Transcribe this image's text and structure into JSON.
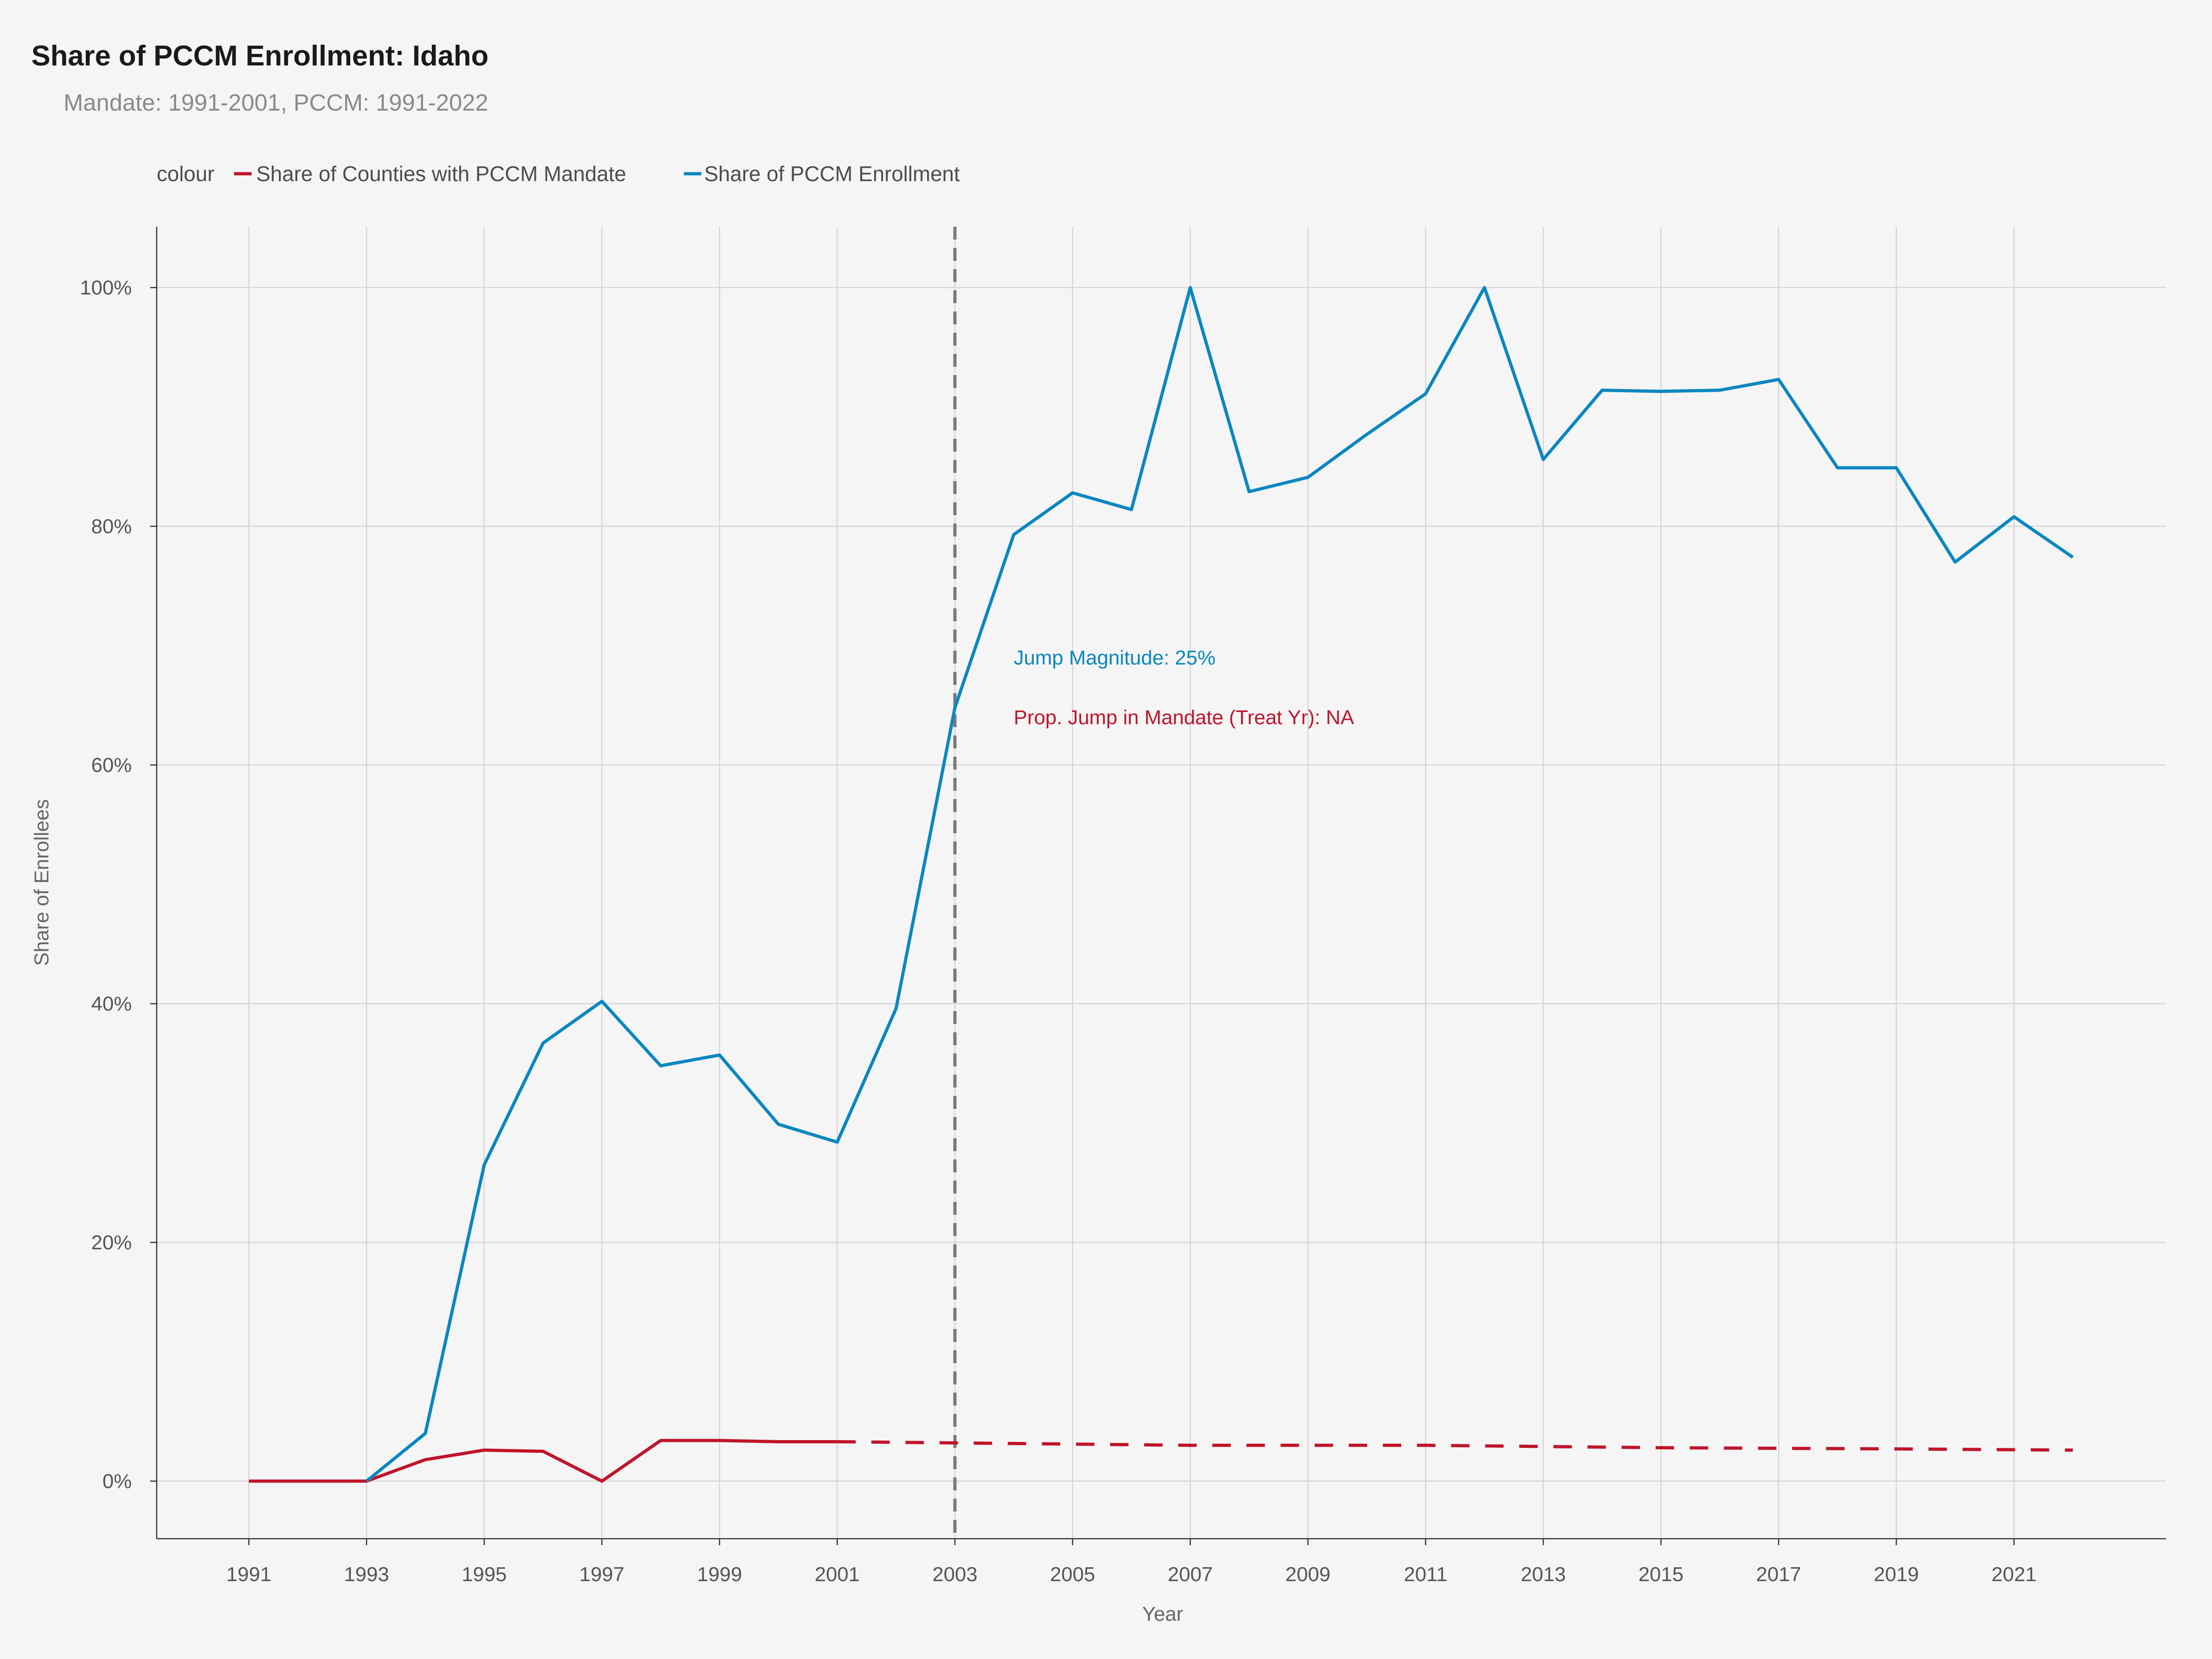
{
  "chart_data": {
    "type": "line",
    "title": "Share of PCCM Enrollment: Idaho",
    "subtitle": "Mandate: 1991-2001, PCCM: 1991-2022",
    "xlabel": "Year",
    "ylabel": "Share of Enrollees",
    "legend_title": "colour",
    "legend_position": "top-left",
    "grid": true,
    "xlim": [
      1991,
      2022
    ],
    "ylim": [
      0,
      1
    ],
    "x_ticks": [
      1991,
      1993,
      1995,
      1997,
      1999,
      2001,
      2003,
      2005,
      2007,
      2009,
      2011,
      2013,
      2015,
      2017,
      2019,
      2021
    ],
    "y_ticks": [
      0,
      0.2,
      0.4,
      0.6,
      0.8,
      1.0
    ],
    "y_tick_labels": [
      "0%",
      "20%",
      "40%",
      "60%",
      "80%",
      "100%"
    ],
    "treatment_year": 2003,
    "series": [
      {
        "name": "Share of Counties with PCCM Mandate",
        "color": "#c0152a",
        "x": [
          1991,
          1992,
          1993,
          1994,
          1995,
          1996,
          1997,
          1998,
          1999,
          2000,
          2001
        ],
        "values": [
          0.0,
          0.0,
          0.0,
          0.018,
          0.026,
          0.025,
          0.0,
          0.034,
          0.034,
          0.033,
          0.033
        ],
        "extrapolated": {
          "x": [
            2001,
            2003,
            2007,
            2011,
            2015,
            2019,
            2022
          ],
          "values": [
            0.033,
            0.032,
            0.03,
            0.03,
            0.028,
            0.027,
            0.026
          ]
        }
      },
      {
        "name": "Share of PCCM Enrollment",
        "color": "#0b87c0",
        "x": [
          1993,
          1994,
          1995,
          1996,
          1997,
          1998,
          1999,
          2000,
          2001,
          2002,
          2003,
          2004,
          2005,
          2006,
          2007,
          2008,
          2009,
          2010,
          2011,
          2012,
          2013,
          2014,
          2015,
          2016,
          2017,
          2018,
          2019,
          2020,
          2021,
          2022
        ],
        "values": [
          0.0,
          0.04,
          0.265,
          0.367,
          0.402,
          0.348,
          0.357,
          0.299,
          0.284,
          0.396,
          0.648,
          0.793,
          0.828,
          0.814,
          1.0,
          0.829,
          0.841,
          0.877,
          0.911,
          1.0,
          0.856,
          0.914,
          0.913,
          0.914,
          0.923,
          0.849,
          0.849,
          0.77,
          0.808,
          0.774
        ]
      }
    ],
    "annotations": [
      {
        "text": "Jump Magnitude: 25%",
        "x": 2004,
        "y": 0.69,
        "color": "#0b87c0"
      },
      {
        "text": "Prop. Jump in Mandate (Treat Yr): NA",
        "x": 2004,
        "y": 0.64,
        "color": "#c0152a"
      }
    ]
  }
}
